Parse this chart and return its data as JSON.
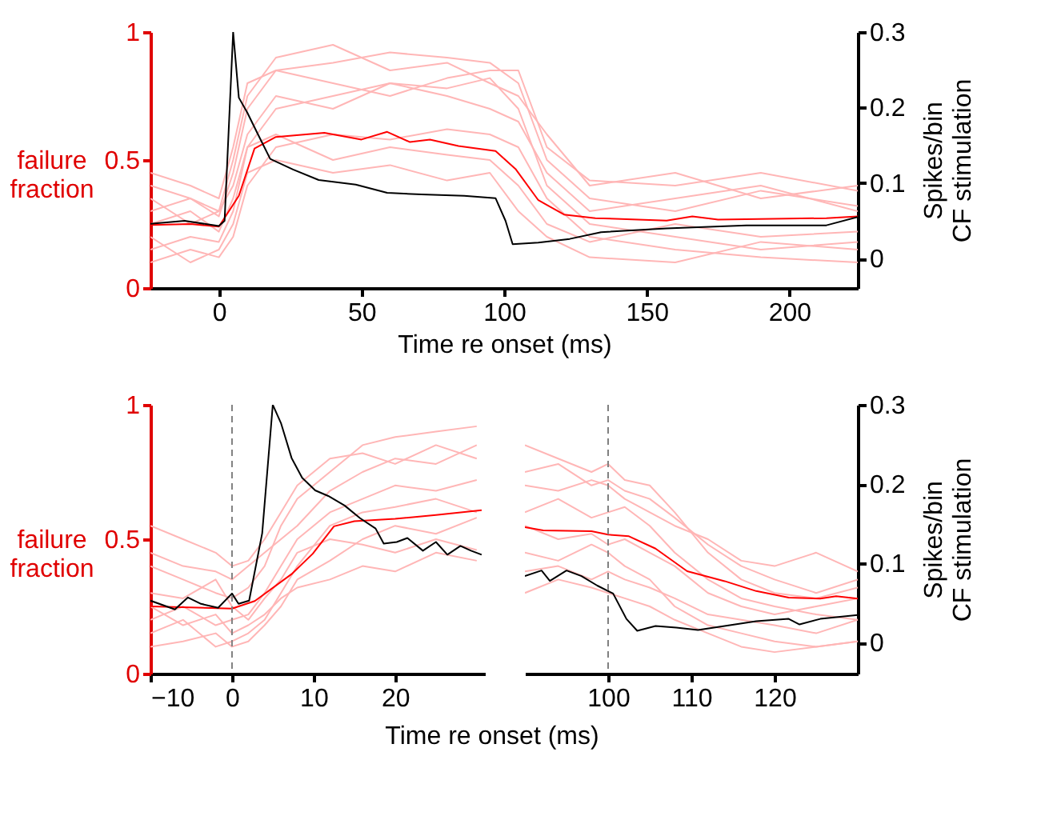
{
  "chart_data": [
    {
      "type": "line",
      "xlabel": "Time re onset (ms)",
      "ylabel": "failure\nfraction",
      "y2label": "Spikes/bin\nCF stimulation",
      "xlim": [
        -24,
        224
      ],
      "xticks": [
        0,
        50,
        100,
        150,
        200
      ],
      "ylim": [
        0,
        1
      ],
      "yticks": [
        0,
        0.5,
        1
      ],
      "y2lim": [
        -0.039,
        0.3
      ],
      "y2ticks": [
        0,
        0.1,
        0.2,
        0.3
      ],
      "grid": false,
      "marker": "none",
      "line_style": "solid",
      "x": [
        -24,
        -10,
        0,
        5,
        10,
        20,
        40,
        60,
        80,
        95,
        105,
        115,
        130,
        160,
        190,
        224
      ],
      "series": [
        {
          "color": "#ffb6b6",
          "values": [
            0.3,
            0.35,
            0.28,
            0.45,
            0.7,
            0.85,
            0.88,
            0.92,
            0.9,
            0.88,
            0.8,
            0.5,
            0.35,
            0.3,
            0.38,
            0.32
          ]
        },
        {
          "color": "#ffb6b6",
          "values": [
            0.15,
            0.2,
            0.18,
            0.3,
            0.55,
            0.7,
            0.75,
            0.8,
            0.78,
            0.82,
            0.7,
            0.4,
            0.25,
            0.2,
            0.15,
            0.18
          ]
        },
        {
          "color": "#ffb6b6",
          "values": [
            0.4,
            0.35,
            0.3,
            0.5,
            0.75,
            0.9,
            0.95,
            0.85,
            0.88,
            0.8,
            0.75,
            0.6,
            0.4,
            0.45,
            0.35,
            0.4
          ]
        },
        {
          "color": "#ffb6b6",
          "values": [
            0.1,
            0.15,
            0.12,
            0.2,
            0.4,
            0.55,
            0.6,
            0.58,
            0.62,
            0.6,
            0.55,
            0.35,
            0.2,
            0.15,
            0.12,
            0.1
          ]
        },
        {
          "color": "#ffb6b6",
          "values": [
            0.25,
            0.3,
            0.22,
            0.35,
            0.55,
            0.6,
            0.5,
            0.55,
            0.52,
            0.5,
            0.4,
            0.25,
            0.18,
            0.25,
            0.2,
            0.22
          ]
        },
        {
          "color": "#ffb6b6",
          "values": [
            0.35,
            0.25,
            0.3,
            0.4,
            0.6,
            0.75,
            0.7,
            0.8,
            0.75,
            0.7,
            0.65,
            0.45,
            0.3,
            0.35,
            0.4,
            0.3
          ]
        },
        {
          "color": "#ffb6b6",
          "values": [
            0.2,
            0.1,
            0.15,
            0.25,
            0.45,
            0.5,
            0.45,
            0.48,
            0.42,
            0.45,
            0.3,
            0.2,
            0.12,
            0.1,
            0.18,
            0.15
          ]
        },
        {
          "color": "#ffb6b6",
          "values": [
            0.45,
            0.4,
            0.35,
            0.55,
            0.8,
            0.85,
            0.8,
            0.75,
            0.82,
            0.85,
            0.85,
            0.55,
            0.42,
            0.4,
            0.45,
            0.38
          ]
        },
        {
          "color": "#ff0000",
          "x": [
            -24,
            -10,
            0,
            7,
            12.5,
            20,
            37,
            50,
            59,
            67,
            74,
            84,
            97,
            104,
            112,
            121,
            132,
            157,
            166,
            175,
            213,
            224
          ],
          "values": [
            0.246,
            0.25,
            0.24,
            0.36,
            0.545,
            0.59,
            0.606,
            0.58,
            0.61,
            0.57,
            0.58,
            0.555,
            0.535,
            0.465,
            0.343,
            0.287,
            0.273,
            0.263,
            0.28,
            0.267,
            0.273,
            0.28
          ]
        },
        {
          "color": "#000000",
          "axis": "y2",
          "x": [
            -24,
            -12,
            0,
            2,
            5,
            7,
            10,
            13.5,
            18,
            26,
            35,
            48,
            59,
            71,
            86,
            97,
            100.5,
            103,
            112,
            123,
            134,
            157,
            185,
            213,
            224
          ],
          "values": [
            0.046,
            0.05,
            0.043,
            0.05,
            0.3,
            0.213,
            0.193,
            0.166,
            0.132,
            0.118,
            0.104,
            0.098,
            0.087,
            0.085,
            0.083,
            0.08,
            0.05,
            0.019,
            0.021,
            0.026,
            0.035,
            0.04,
            0.044,
            0.044,
            0.055
          ]
        }
      ]
    },
    {
      "type": "line",
      "xlabel": "Time re onset (ms)",
      "ylabel": "failure\nfraction",
      "xlim": [
        -10,
        31
      ],
      "xticks": [
        -10,
        0,
        10,
        20
      ],
      "ylim": [
        0,
        1
      ],
      "yticks": [
        0,
        0.5,
        1
      ],
      "y2lim": [
        -0.039,
        0.3
      ],
      "tick_labels": "xy",
      "grid": false,
      "marker": "none",
      "line_style": "solid",
      "ref_lines": [
        {
          "axis": "x",
          "value": 0,
          "color": "#808080",
          "line_style": "dashed"
        }
      ],
      "x": [
        -10,
        -6,
        -2,
        0,
        2,
        4,
        6,
        8,
        12,
        16,
        20,
        25,
        30
      ],
      "series": [
        {
          "color": "#ffb6b6",
          "values": [
            0.4,
            0.35,
            0.3,
            0.28,
            0.32,
            0.4,
            0.55,
            0.65,
            0.75,
            0.85,
            0.88,
            0.9,
            0.92
          ]
        },
        {
          "color": "#ffb6b6",
          "values": [
            0.2,
            0.25,
            0.18,
            0.2,
            0.22,
            0.3,
            0.4,
            0.5,
            0.6,
            0.65,
            0.7,
            0.68,
            0.72
          ]
        },
        {
          "color": "#ffb6b6",
          "values": [
            0.55,
            0.5,
            0.45,
            0.4,
            0.42,
            0.5,
            0.6,
            0.7,
            0.8,
            0.82,
            0.78,
            0.85,
            0.8
          ]
        },
        {
          "color": "#ffb6b6",
          "values": [
            0.1,
            0.12,
            0.15,
            0.1,
            0.12,
            0.18,
            0.25,
            0.35,
            0.42,
            0.5,
            0.55,
            0.52,
            0.58
          ]
        },
        {
          "color": "#ffb6b6",
          "values": [
            0.3,
            0.28,
            0.35,
            0.25,
            0.2,
            0.28,
            0.35,
            0.45,
            0.5,
            0.48,
            0.45,
            0.5,
            0.46
          ]
        },
        {
          "color": "#ffb6b6",
          "values": [
            0.15,
            0.2,
            0.1,
            0.12,
            0.15,
            0.2,
            0.3,
            0.4,
            0.55,
            0.6,
            0.62,
            0.65,
            0.6
          ]
        },
        {
          "color": "#ffb6b6",
          "values": [
            0.45,
            0.4,
            0.38,
            0.35,
            0.4,
            0.45,
            0.5,
            0.55,
            0.68,
            0.75,
            0.8,
            0.78,
            0.85
          ]
        },
        {
          "color": "#ffb6b6",
          "values": [
            0.25,
            0.18,
            0.22,
            0.15,
            0.18,
            0.22,
            0.28,
            0.32,
            0.35,
            0.4,
            0.38,
            0.45,
            0.42
          ]
        },
        {
          "color": "#ff0000",
          "x": [
            -10,
            0,
            2.8,
            7.3,
            9.9,
            12.5,
            15,
            20,
            25,
            30.6
          ],
          "values": [
            0.25,
            0.242,
            0.27,
            0.37,
            0.446,
            0.548,
            0.567,
            0.576,
            0.59,
            0.608
          ]
        },
        {
          "color": "#000000",
          "axis": "y2",
          "x": [
            -10,
            -7,
            -5.4,
            -3.8,
            -1.7,
            0,
            0.8,
            2.1,
            3.7,
            5,
            6,
            7.3,
            8.6,
            10.2,
            11.8,
            13.8,
            15.7,
            17.6,
            18.6,
            20.2,
            21.5,
            23.4,
            25,
            26.4,
            28,
            29.3,
            30.6
          ],
          "values": [
            0.053,
            0.042,
            0.057,
            0.049,
            0.044,
            0.062,
            0.049,
            0.053,
            0.138,
            0.3,
            0.277,
            0.233,
            0.208,
            0.192,
            0.185,
            0.173,
            0.157,
            0.144,
            0.125,
            0.127,
            0.132,
            0.116,
            0.127,
            0.111,
            0.122,
            0.116,
            0.111
          ]
        }
      ]
    },
    {
      "type": "line",
      "y2label": "Spikes/bin\nCF stimulation",
      "xlim": [
        90,
        130
      ],
      "xticks": [
        100,
        110,
        120
      ],
      "ylim": [
        0,
        1
      ],
      "y2lim": [
        -0.039,
        0.3
      ],
      "y2ticks": [
        0,
        0.1,
        0.2,
        0.3
      ],
      "tick_labels": "xy2",
      "grid": false,
      "marker": "none",
      "line_style": "solid",
      "ref_lines": [
        {
          "axis": "x",
          "value": 100,
          "color": "#808080",
          "line_style": "dashed"
        }
      ],
      "x": [
        90,
        94,
        98,
        100,
        102,
        105,
        108,
        112,
        116,
        120,
        125,
        130
      ],
      "series": [
        {
          "color": "#ffb6b6",
          "values": [
            0.85,
            0.8,
            0.75,
            0.78,
            0.72,
            0.7,
            0.6,
            0.45,
            0.35,
            0.3,
            0.28,
            0.32
          ]
        },
        {
          "color": "#ffb6b6",
          "values": [
            0.6,
            0.65,
            0.58,
            0.6,
            0.62,
            0.55,
            0.45,
            0.35,
            0.28,
            0.25,
            0.22,
            0.2
          ]
        },
        {
          "color": "#ffb6b6",
          "values": [
            0.45,
            0.42,
            0.48,
            0.45,
            0.4,
            0.35,
            0.25,
            0.18,
            0.15,
            0.12,
            0.1,
            0.12
          ]
        },
        {
          "color": "#ffb6b6",
          "values": [
            0.7,
            0.68,
            0.72,
            0.7,
            0.65,
            0.6,
            0.55,
            0.5,
            0.42,
            0.4,
            0.45,
            0.38
          ]
        },
        {
          "color": "#ffb6b6",
          "values": [
            0.3,
            0.35,
            0.32,
            0.3,
            0.28,
            0.25,
            0.2,
            0.15,
            0.1,
            0.08,
            0.1,
            0.12
          ]
        },
        {
          "color": "#ffb6b6",
          "values": [
            0.55,
            0.5,
            0.52,
            0.48,
            0.5,
            0.45,
            0.4,
            0.3,
            0.25,
            0.22,
            0.25,
            0.28
          ]
        },
        {
          "color": "#ffb6b6",
          "values": [
            0.75,
            0.78,
            0.7,
            0.72,
            0.68,
            0.65,
            0.58,
            0.48,
            0.4,
            0.35,
            0.3,
            0.35
          ]
        },
        {
          "color": "#ffb6b6",
          "values": [
            0.38,
            0.4,
            0.35,
            0.38,
            0.35,
            0.32,
            0.28,
            0.22,
            0.2,
            0.18,
            0.15,
            0.2
          ]
        },
        {
          "color": "#ff0000",
          "x": [
            90,
            92.2,
            98,
            100,
            102.5,
            105.7,
            109.5,
            114,
            117.8,
            121.7,
            125.5,
            127.4,
            130
          ],
          "values": [
            0.545,
            0.533,
            0.53,
            0.517,
            0.511,
            0.465,
            0.381,
            0.344,
            0.307,
            0.283,
            0.279,
            0.288,
            0.279
          ]
        },
        {
          "color": "#000000",
          "axis": "y2",
          "x": [
            90,
            92,
            93,
            95,
            96.8,
            98.7,
            100.6,
            102.2,
            103.5,
            105.7,
            108.2,
            110.8,
            114,
            117.8,
            121.7,
            123,
            125.5,
            130
          ],
          "values": [
            0.084,
            0.091,
            0.078,
            0.091,
            0.084,
            0.072,
            0.062,
            0.03,
            0.015,
            0.021,
            0.019,
            0.016,
            0.021,
            0.027,
            0.03,
            0.023,
            0.03,
            0.035
          ]
        }
      ]
    }
  ]
}
